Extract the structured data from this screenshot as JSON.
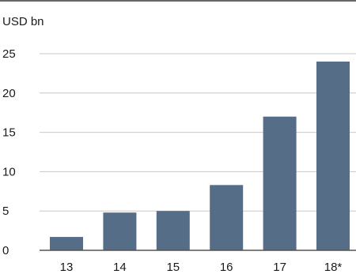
{
  "chart_data": {
    "type": "bar",
    "title": "",
    "unit_label": "USD bn",
    "xlabel": "",
    "ylabel": "",
    "categories": [
      "13",
      "14",
      "15",
      "16",
      "17",
      "18*"
    ],
    "values": [
      1.7,
      4.8,
      5.0,
      8.3,
      17.0,
      24.0
    ],
    "ylim": [
      0,
      25
    ],
    "yticks": [
      "0",
      "5",
      "10",
      "15",
      "20",
      "25"
    ],
    "grid": true,
    "colors": {
      "bar": "#566d87",
      "grid": "#c8c8c8",
      "axis": "#555555",
      "top_rule": "#666666"
    }
  }
}
